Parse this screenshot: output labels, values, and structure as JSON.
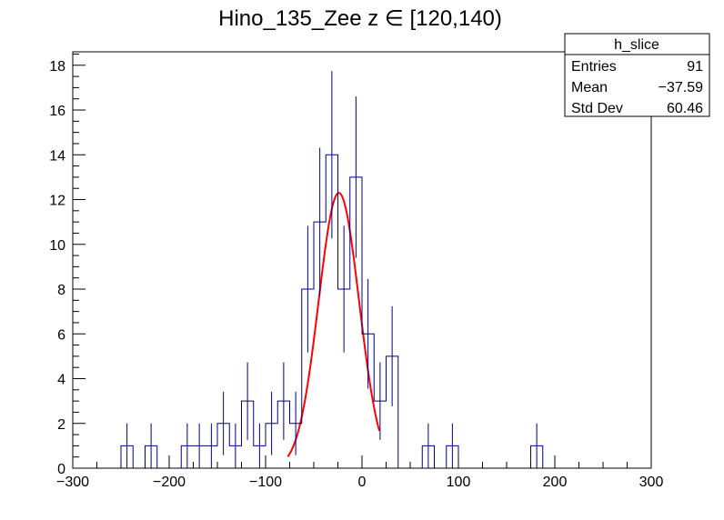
{
  "chart_data": {
    "type": "histogram",
    "title": "Hino_135_Zee z  ∈ [120,140)",
    "xlim": [
      -300,
      300
    ],
    "ylim": [
      0,
      18.6
    ],
    "bin_width": 12.5,
    "x_ticks": [
      -300,
      -200,
      -100,
      0,
      100,
      200,
      300
    ],
    "x_tick_labels": [
      "−300",
      "−200",
      "−100",
      "0",
      "100",
      "200",
      "300"
    ],
    "y_ticks": [
      0,
      2,
      4,
      6,
      8,
      10,
      12,
      14,
      16,
      18
    ],
    "y_tick_labels": [
      "0",
      "2",
      "4",
      "6",
      "8",
      "10",
      "12",
      "14",
      "16",
      "18"
    ],
    "bins": [
      {
        "x": -243.75,
        "y": 1
      },
      {
        "x": -218.75,
        "y": 1
      },
      {
        "x": -181.25,
        "y": 1
      },
      {
        "x": -168.75,
        "y": 1
      },
      {
        "x": -156.25,
        "y": 1
      },
      {
        "x": -143.75,
        "y": 2
      },
      {
        "x": -131.25,
        "y": 1
      },
      {
        "x": -118.75,
        "y": 3
      },
      {
        "x": -106.25,
        "y": 1
      },
      {
        "x": -93.75,
        "y": 2
      },
      {
        "x": -81.25,
        "y": 3
      },
      {
        "x": -68.75,
        "y": 2
      },
      {
        "x": -56.25,
        "y": 8
      },
      {
        "x": -43.75,
        "y": 11
      },
      {
        "x": -31.25,
        "y": 14
      },
      {
        "x": -18.75,
        "y": 8
      },
      {
        "x": -6.25,
        "y": 13
      },
      {
        "x": 6.25,
        "y": 6
      },
      {
        "x": 18.75,
        "y": 3
      },
      {
        "x": 31.25,
        "y": 5
      },
      {
        "x": 68.75,
        "y": 1
      },
      {
        "x": 93.75,
        "y": 1
      },
      {
        "x": 181.25,
        "y": 1
      }
    ],
    "fit": {
      "type": "gaussian",
      "amplitude": 12.3,
      "mean": -24,
      "sigma": 21,
      "x_range": [
        -77,
        18
      ]
    },
    "colors": {
      "histogram": "#000080",
      "fit": "#ff0000",
      "axis": "#000000"
    }
  },
  "stats_box": {
    "title": "h_slice",
    "rows": [
      {
        "label": "Entries",
        "value": "91"
      },
      {
        "label": "Mean",
        "value": "−37.59"
      },
      {
        "label": "Std Dev",
        "value": "60.46"
      }
    ]
  }
}
